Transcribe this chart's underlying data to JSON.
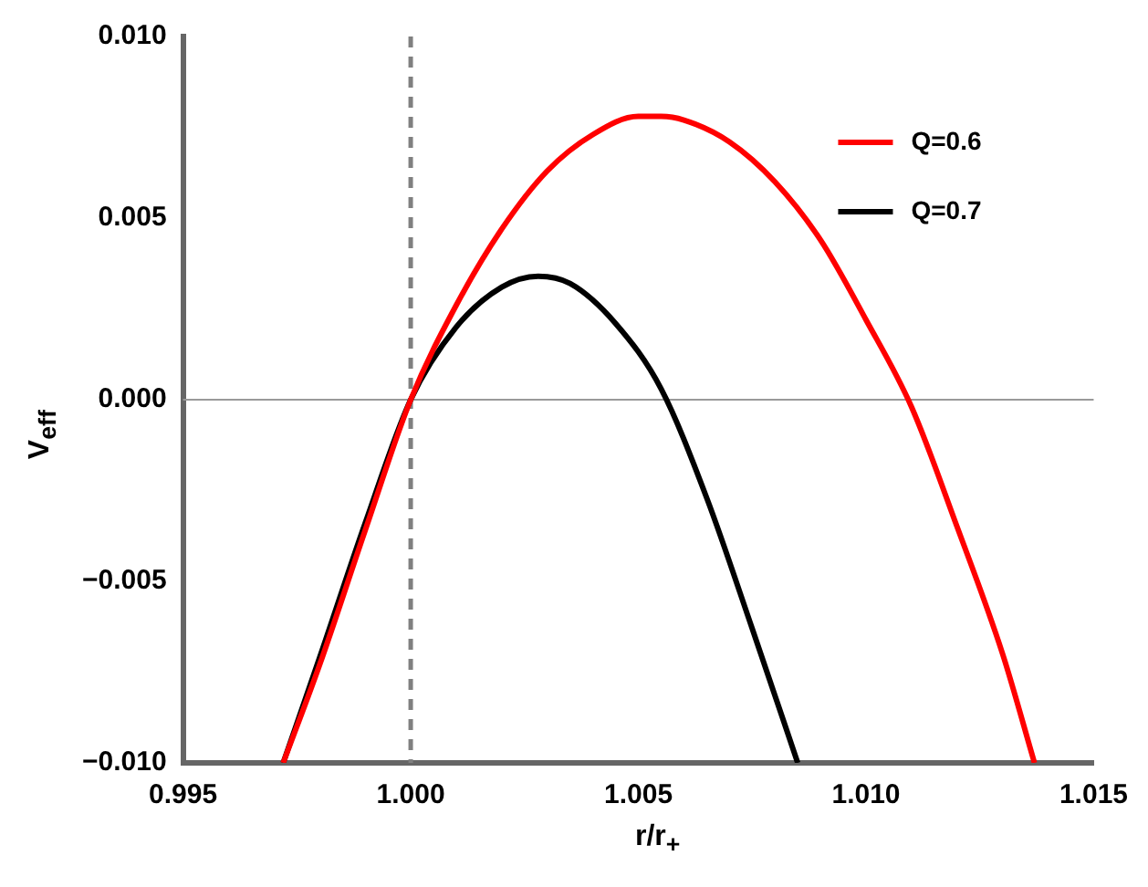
{
  "chart_data": {
    "type": "line",
    "xlabel": "r/r$_{+}$",
    "ylabel": "V$_{eff}$",
    "xlim": [
      0.995,
      1.015
    ],
    "ylim": [
      -0.01,
      0.01
    ],
    "xticks": [
      0.995,
      {
        "value": 1,
        "label": "1.000"
      },
      1.005,
      {
        "value": 1.01,
        "label": "1.010"
      },
      1.015
    ],
    "yticks": [
      {
        "value": -0.01,
        "label": "−0.010"
      },
      {
        "value": -0.005,
        "label": "−0.005"
      },
      {
        "value": 0,
        "label": "0.000"
      },
      0.005,
      {
        "value": 0.01,
        "label": "0.010"
      }
    ],
    "grid": false,
    "legend": "top right",
    "marker": "none",
    "line_style": "solid",
    "ref_lines": [
      {
        "axis": "x",
        "value": 1,
        "color": "#808080",
        "line_style": "dashed"
      },
      {
        "axis": "y",
        "value": 0,
        "color": "#999999",
        "line_style": "solid"
      }
    ],
    "series": [
      {
        "name": "Q=0.6",
        "color": "#ff0000",
        "x": [
          0.9972,
          0.998,
          0.999,
          1.0,
          1.001,
          1.002,
          1.003,
          1.004,
          1.005,
          1.0055,
          1.006,
          1.007,
          1.008,
          1.009,
          1.01,
          1.011,
          1.012,
          1.013,
          1.0137
        ],
        "values": [
          -0.01,
          -0.0073,
          -0.0036,
          0,
          0.0026,
          0.0047,
          0.0063,
          0.0073,
          0.0078,
          0.0078,
          0.0077,
          0.0071,
          0.006,
          0.0044,
          0.0022,
          -0.0002,
          -0.0035,
          -0.007,
          -0.01
        ]
      },
      {
        "name": "Q=0.7",
        "color": "#000000",
        "x": [
          0.9972,
          0.998,
          0.999,
          1.0,
          1.001,
          1.002,
          1.0028,
          1.0035,
          1.0045,
          1.0055,
          1.0065,
          1.0075,
          1.0085
        ],
        "values": [
          -0.01,
          -0.0071,
          -0.0034,
          0,
          0.002,
          0.0031,
          0.0034,
          0.0032,
          0.0021,
          0.0003,
          -0.0027,
          -0.0063,
          -0.01
        ]
      }
    ]
  }
}
